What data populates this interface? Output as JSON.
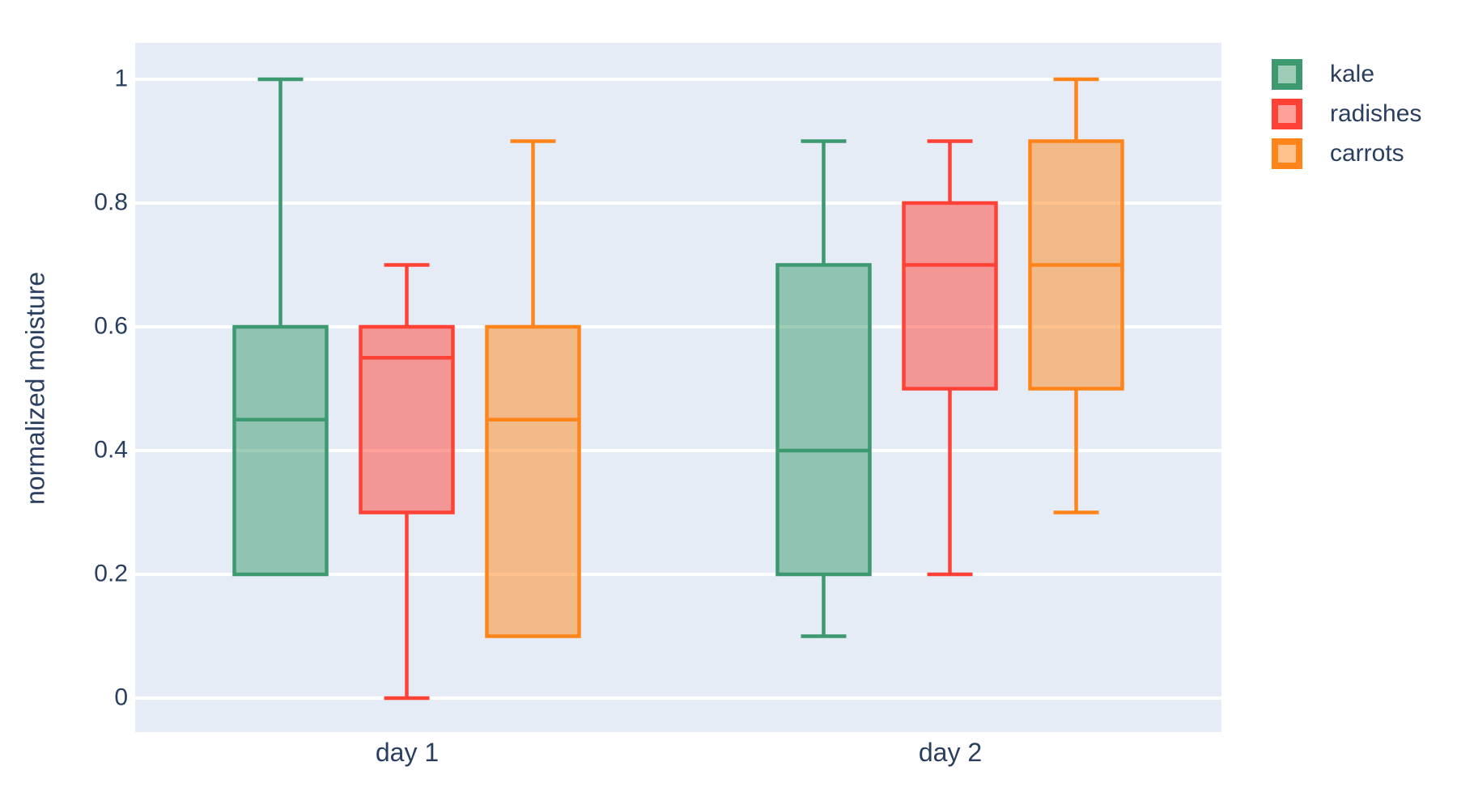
{
  "chart_data": {
    "type": "box",
    "title": "",
    "xlabel": "",
    "ylabel": "normalized moisture",
    "categories": [
      "day 1",
      "day 2"
    ],
    "yticks": {
      "values": [
        0,
        0.2,
        0.4,
        0.6,
        0.8,
        1
      ],
      "labels": [
        "0",
        "0.2",
        "0.4",
        "0.6",
        "0.8",
        "1"
      ]
    },
    "ylim": [
      -0.055,
      1.06
    ],
    "grid": true,
    "boxmode": "group",
    "legend_position": "top-right-outside",
    "series": [
      {
        "name": "kale",
        "color": "#3D9970",
        "boxes": [
          {
            "category": "day 1",
            "min": 0.2,
            "q1": 0.2,
            "median": 0.45,
            "q3": 0.6,
            "max": 1.0
          },
          {
            "category": "day 2",
            "min": 0.1,
            "q1": 0.2,
            "median": 0.4,
            "q3": 0.7,
            "max": 0.9
          }
        ]
      },
      {
        "name": "radishes",
        "color": "#FF4136",
        "boxes": [
          {
            "category": "day 1",
            "min": 0.0,
            "q1": 0.3,
            "median": 0.55,
            "q3": 0.6,
            "max": 0.7
          },
          {
            "category": "day 2",
            "min": 0.2,
            "q1": 0.5,
            "median": 0.7,
            "q3": 0.8,
            "max": 0.9
          }
        ]
      },
      {
        "name": "carrots",
        "color": "#FF851B",
        "boxes": [
          {
            "category": "day 1",
            "min": 0.1,
            "q1": 0.1,
            "median": 0.45,
            "q3": 0.6,
            "max": 0.9
          },
          {
            "category": "day 2",
            "min": 0.3,
            "q1": 0.5,
            "median": 0.7,
            "q3": 0.9,
            "max": 1.0
          }
        ]
      }
    ],
    "colors": {
      "plot_background": "#E5ECF6",
      "gridline": "#FFFFFF",
      "text": "#2A3F5F"
    },
    "fill_opacity": 0.5
  }
}
